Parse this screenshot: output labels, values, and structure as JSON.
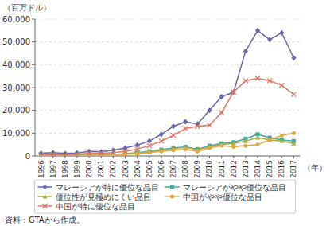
{
  "chart_data": {
    "type": "line",
    "ylabel": "（百万ドル）",
    "xlabel": "（年）",
    "annotations": [
      "資料：GTAから作成。"
    ],
    "x": [
      1996,
      1997,
      1998,
      1999,
      2000,
      2001,
      2002,
      2003,
      2004,
      2005,
      2006,
      2007,
      2008,
      2009,
      2010,
      2011,
      2012,
      2013,
      2014,
      2015,
      2016,
      2017
    ],
    "xlim": [
      1995.5,
      2017.5
    ],
    "xticks": [
      1996,
      1997,
      1998,
      1999,
      2000,
      2001,
      2002,
      2003,
      2004,
      2005,
      2006,
      2007,
      2008,
      2009,
      2010,
      2011,
      2012,
      2013,
      2014,
      2015,
      2016,
      2017
    ],
    "ylim": [
      0,
      60000
    ],
    "yticks": [
      0,
      {
        "value": 10000,
        "label": "10,000"
      },
      {
        "value": 20000,
        "label": "20,000"
      },
      {
        "value": 30000,
        "label": "30,000"
      },
      {
        "value": 40000,
        "label": "40,000"
      },
      {
        "value": 50000,
        "label": "50,000"
      },
      {
        "value": 60000,
        "label": "60,000"
      }
    ],
    "grid": "y",
    "legend": "bottom",
    "series": [
      {
        "name": "マレーシアが特に優位な品目",
        "color": "#6666aa",
        "marker": "diamond",
        "values": [
          1200,
          1500,
          1100,
          1300,
          2000,
          1800,
          2500,
          3500,
          4800,
          6500,
          9500,
          13000,
          15000,
          14000,
          20000,
          26000,
          28000,
          46000,
          55000,
          51000,
          54000,
          43000
        ]
      },
      {
        "name": "マレーシアがやや優位な品目",
        "color": "#44aa99",
        "marker": "square",
        "values": [
          300,
          400,
          300,
          350,
          500,
          500,
          700,
          1000,
          1500,
          2000,
          2800,
          3500,
          4000,
          3000,
          4500,
          5500,
          6000,
          7500,
          9500,
          8000,
          7000,
          6500
        ]
      },
      {
        "name": "優位性が見極めにくい品目",
        "color": "#aaaa44",
        "marker": "triangle",
        "values": [
          200,
          250,
          200,
          250,
          400,
          400,
          600,
          900,
          1300,
          1800,
          2500,
          3200,
          3800,
          2800,
          4000,
          5000,
          5500,
          6500,
          8000,
          7000,
          6500,
          5500
        ]
      },
      {
        "name": "中国がやや優位な品目",
        "color": "#ddaa44",
        "marker": "circle",
        "values": [
          100,
          150,
          100,
          150,
          250,
          300,
          400,
          700,
          1000,
          1500,
          2000,
          2500,
          3000,
          2000,
          3500,
          4500,
          4000,
          4500,
          5000,
          7000,
          9000,
          10000
        ]
      },
      {
        "name": "中国が特に優位な品目",
        "color": "#dd7766",
        "marker": "x",
        "values": [
          500,
          700,
          500,
          700,
          1200,
          1200,
          1500,
          2000,
          3000,
          4500,
          6500,
          9000,
          12000,
          13000,
          13500,
          19000,
          28000,
          33000,
          34000,
          33000,
          31000,
          27000
        ]
      }
    ]
  }
}
